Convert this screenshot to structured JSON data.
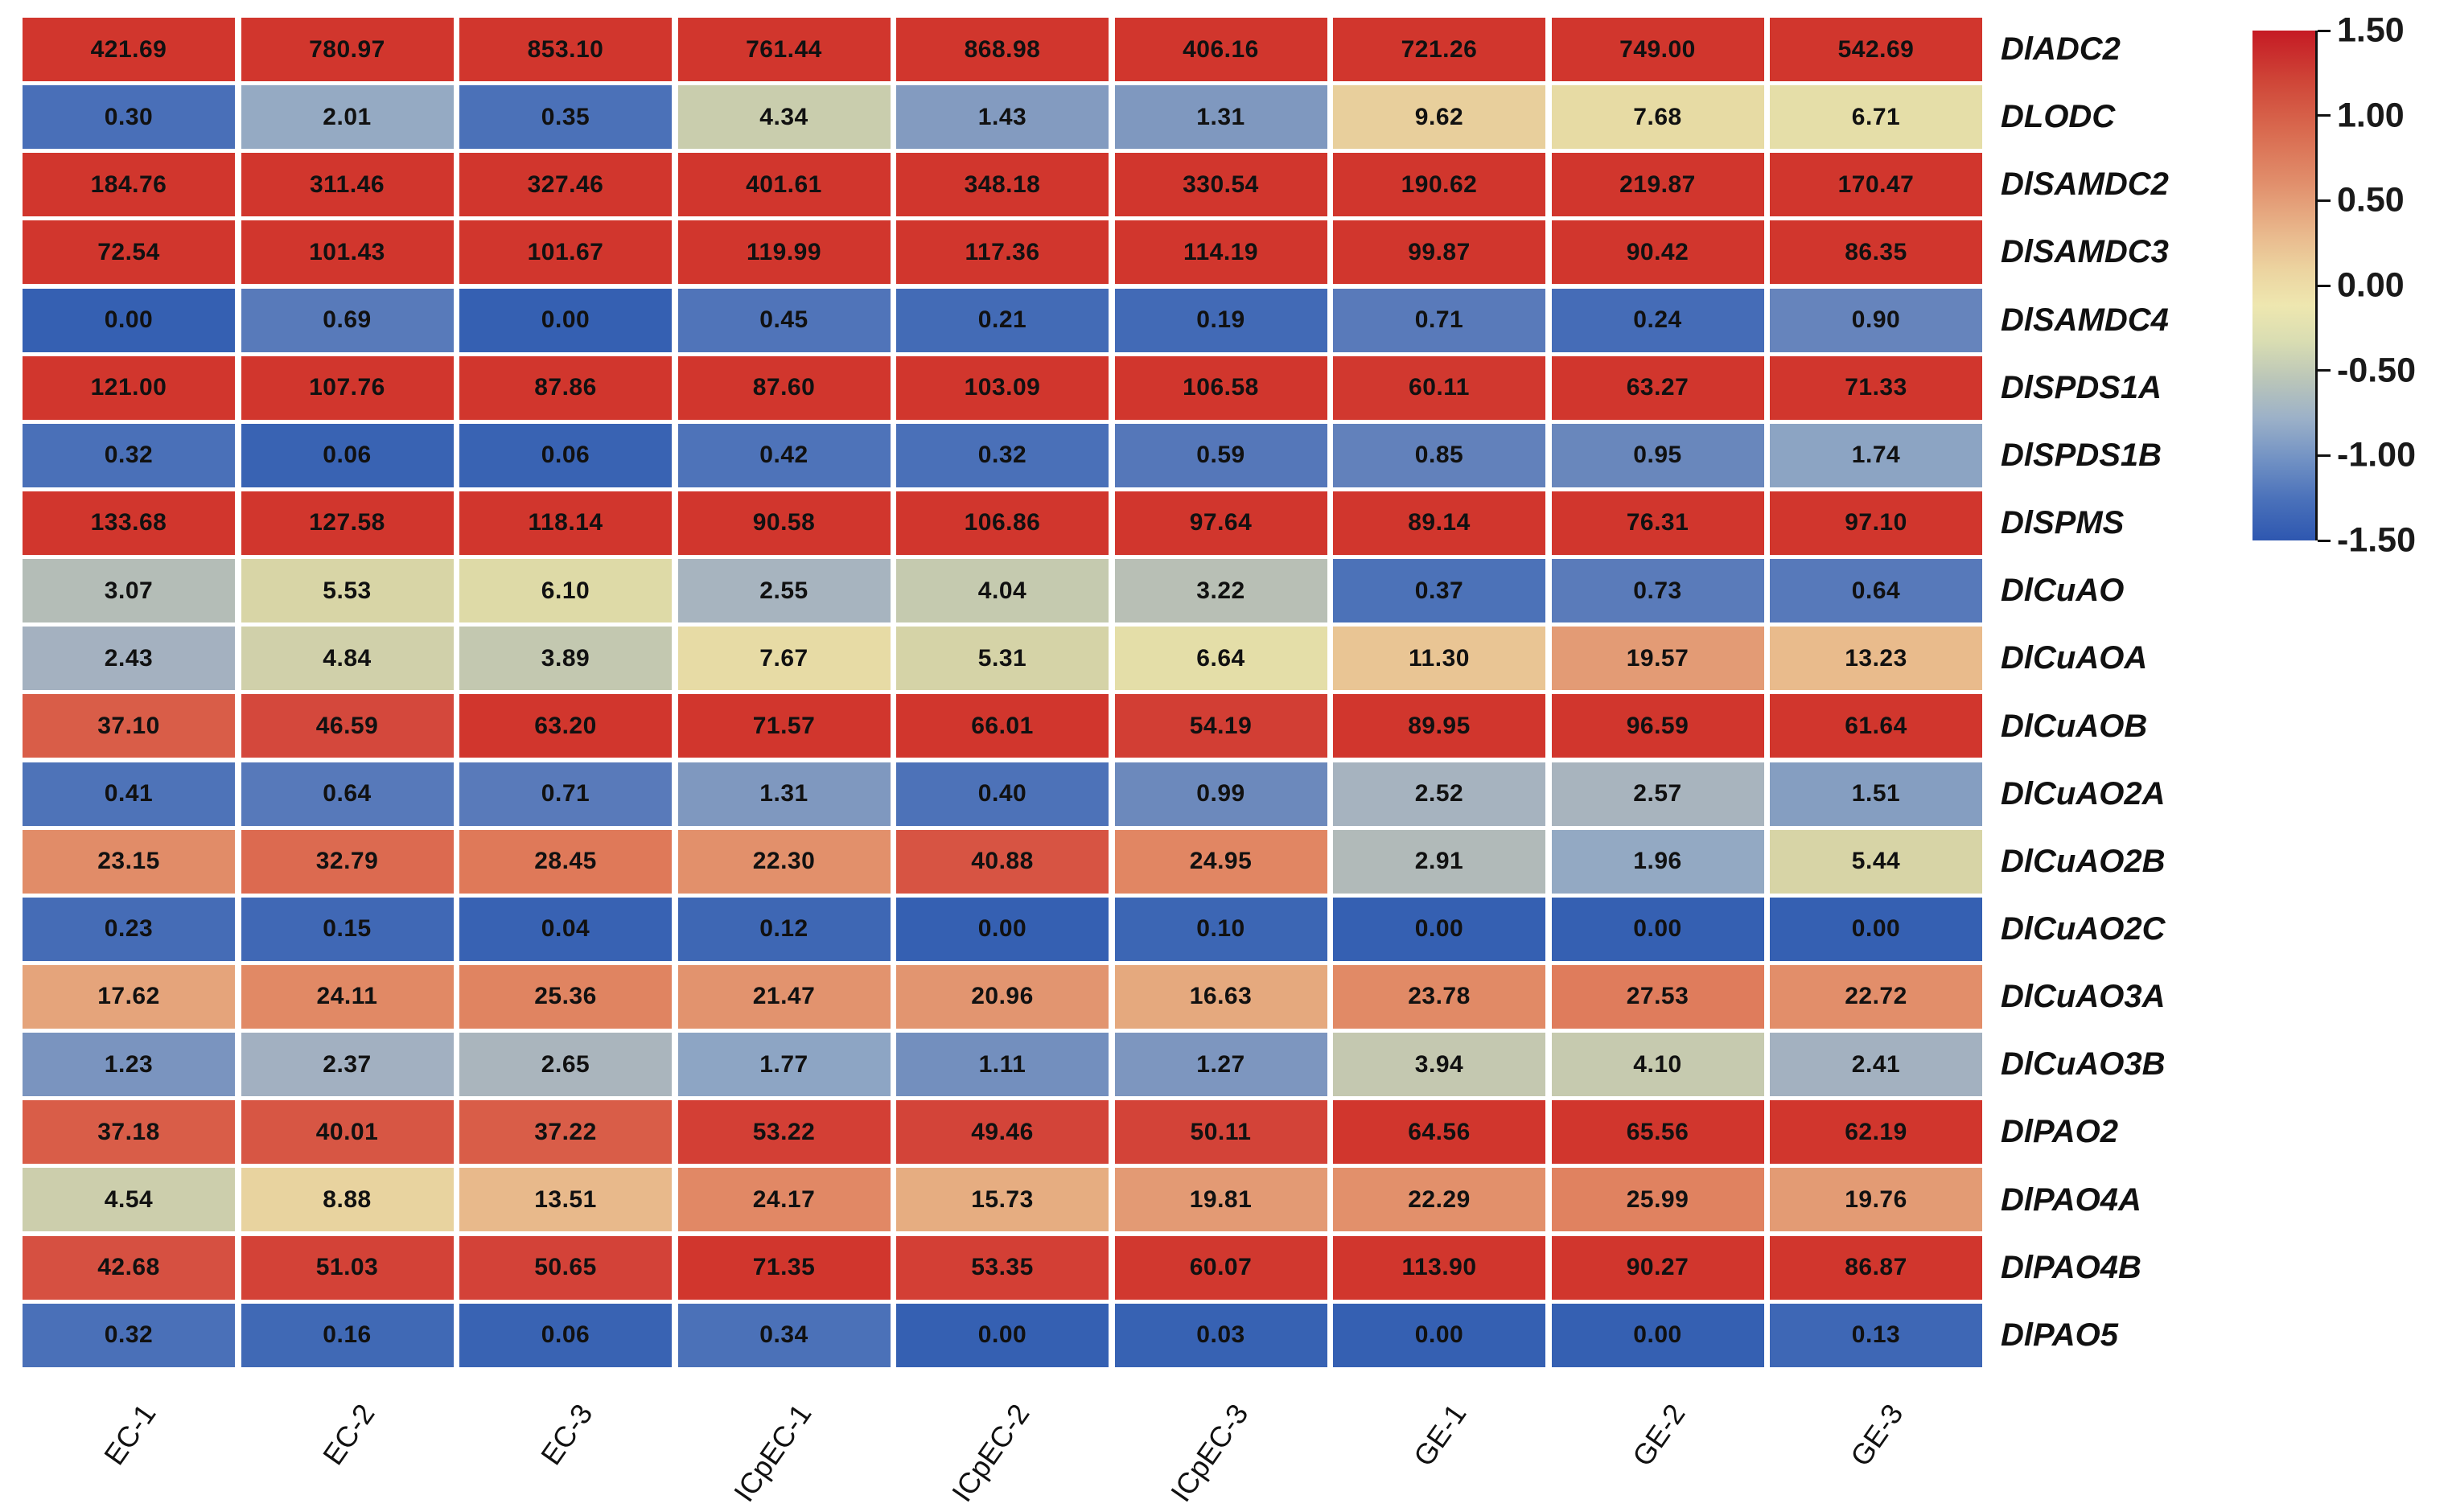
{
  "chart_data": {
    "type": "heatmap",
    "title": "",
    "categories": [
      "EC-1",
      "EC-2",
      "EC-3",
      "ICpEC-1",
      "ICpEC-2",
      "ICpEC-3",
      "GE-1",
      "GE-2",
      "GE-3"
    ],
    "rows": [
      {
        "gene": "DlADC2",
        "values": [
          421.69,
          780.97,
          853.1,
          761.44,
          868.98,
          406.16,
          721.26,
          749.0,
          542.69
        ]
      },
      {
        "gene": "DLODC",
        "values": [
          0.3,
          2.01,
          0.35,
          4.34,
          1.43,
          1.31,
          9.62,
          7.68,
          6.71
        ]
      },
      {
        "gene": "DlSAMDC2",
        "values": [
          184.76,
          311.46,
          327.46,
          401.61,
          348.18,
          330.54,
          190.62,
          219.87,
          170.47
        ]
      },
      {
        "gene": "DlSAMDC3",
        "values": [
          72.54,
          101.43,
          101.67,
          119.99,
          117.36,
          114.19,
          99.87,
          90.42,
          86.35
        ]
      },
      {
        "gene": "DlSAMDC4",
        "values": [
          0.0,
          0.69,
          0.0,
          0.45,
          0.21,
          0.19,
          0.71,
          0.24,
          0.9
        ]
      },
      {
        "gene": "DlSPDS1A",
        "values": [
          121.0,
          107.76,
          87.86,
          87.6,
          103.09,
          106.58,
          60.11,
          63.27,
          71.33
        ]
      },
      {
        "gene": "DlSPDS1B",
        "values": [
          0.32,
          0.06,
          0.06,
          0.42,
          0.32,
          0.59,
          0.85,
          0.95,
          1.74
        ]
      },
      {
        "gene": "DlSPMS",
        "values": [
          133.68,
          127.58,
          118.14,
          90.58,
          106.86,
          97.64,
          89.14,
          76.31,
          97.1
        ]
      },
      {
        "gene": "DlCuAO",
        "values": [
          3.07,
          5.53,
          6.1,
          2.55,
          4.04,
          3.22,
          0.37,
          0.73,
          0.64
        ]
      },
      {
        "gene": "DlCuAOA",
        "values": [
          2.43,
          4.84,
          3.89,
          7.67,
          5.31,
          6.64,
          11.3,
          19.57,
          13.23
        ]
      },
      {
        "gene": "DlCuAOB",
        "values": [
          37.1,
          46.59,
          63.2,
          71.57,
          66.01,
          54.19,
          89.95,
          96.59,
          61.64
        ]
      },
      {
        "gene": "DlCuAO2A",
        "values": [
          0.41,
          0.64,
          0.71,
          1.31,
          0.4,
          0.99,
          2.52,
          2.57,
          1.51
        ]
      },
      {
        "gene": "DlCuAO2B",
        "values": [
          23.15,
          32.79,
          28.45,
          22.3,
          40.88,
          24.95,
          2.91,
          1.96,
          5.44
        ]
      },
      {
        "gene": "DlCuAO2C",
        "values": [
          0.23,
          0.15,
          0.04,
          0.12,
          0.0,
          0.1,
          0.0,
          0.0,
          0.0
        ]
      },
      {
        "gene": "DlCuAO3A",
        "values": [
          17.62,
          24.11,
          25.36,
          21.47,
          20.96,
          16.63,
          23.78,
          27.53,
          22.72
        ]
      },
      {
        "gene": "DlCuAO3B",
        "values": [
          1.23,
          2.37,
          2.65,
          1.77,
          1.11,
          1.27,
          3.94,
          4.1,
          2.41
        ]
      },
      {
        "gene": "DlPAO2",
        "values": [
          37.18,
          40.01,
          37.22,
          53.22,
          49.46,
          50.11,
          64.56,
          65.56,
          62.19
        ]
      },
      {
        "gene": "DlPAO4A",
        "values": [
          4.54,
          8.88,
          13.51,
          24.17,
          15.73,
          19.81,
          22.29,
          25.99,
          19.76
        ]
      },
      {
        "gene": "DlPAO4B",
        "values": [
          42.68,
          51.03,
          50.65,
          71.35,
          53.35,
          60.07,
          113.9,
          90.27,
          86.87
        ]
      },
      {
        "gene": "DlPAO5",
        "values": [
          0.32,
          0.16,
          0.06,
          0.34,
          0.0,
          0.03,
          0.0,
          0.0,
          0.13
        ]
      }
    ],
    "colorbar": {
      "tick_labels": [
        "1.50",
        "1.00",
        "0.50",
        "0.00",
        "-0.50",
        "-1.00",
        "-1.50"
      ],
      "max": 1.5,
      "min": -1.5,
      "position": "top-right"
    },
    "layout_hints": {
      "grid": "white gaps between cells",
      "row_labels": "right side, italic",
      "column_labels": "bottom, rotated"
    },
    "colors": {
      "cell_text": "#111111",
      "label_text": "#111111",
      "background": "#ffffff",
      "cell_colormap": [
        {
          "z": -1.5,
          "color": "#3560b2"
        },
        {
          "z": -1.3,
          "color": "#4a70b8"
        },
        {
          "z": -1.1,
          "color": "#5a7bba"
        },
        {
          "z": -0.9,
          "color": "#7e97bf"
        },
        {
          "z": -0.75,
          "color": "#8ea6c4"
        },
        {
          "z": -0.6,
          "color": "#a5b2c0"
        },
        {
          "z": -0.45,
          "color": "#b9c0b4"
        },
        {
          "z": -0.3,
          "color": "#c8ccae"
        },
        {
          "z": -0.15,
          "color": "#d7d4a6"
        },
        {
          "z": 0.0,
          "color": "#e7e0a8"
        },
        {
          "z": 0.2,
          "color": "#e8d09d"
        },
        {
          "z": 0.4,
          "color": "#e9bd8e"
        },
        {
          "z": 0.55,
          "color": "#e6ac80"
        },
        {
          "z": 0.7,
          "color": "#e39a74"
        },
        {
          "z": 0.9,
          "color": "#e0805e"
        },
        {
          "z": 1.1,
          "color": "#da624b"
        },
        {
          "z": 1.3,
          "color": "#d4473c"
        },
        {
          "z": 1.5,
          "color": "#d1362d"
        }
      ],
      "legend_gradient": [
        {
          "pos": 0,
          "color": "#c51a24"
        },
        {
          "pos": 10,
          "color": "#cf4638"
        },
        {
          "pos": 20,
          "color": "#d96b50"
        },
        {
          "pos": 30,
          "color": "#e18f6c"
        },
        {
          "pos": 40,
          "color": "#e9b98d"
        },
        {
          "pos": 47,
          "color": "#ecd4a0"
        },
        {
          "pos": 54,
          "color": "#eee7b0"
        },
        {
          "pos": 61,
          "color": "#d9ddb2"
        },
        {
          "pos": 68,
          "color": "#bcc7b8"
        },
        {
          "pos": 76,
          "color": "#9cb1c8"
        },
        {
          "pos": 84,
          "color": "#7292c4"
        },
        {
          "pos": 92,
          "color": "#4a71ba"
        },
        {
          "pos": 100,
          "color": "#2e57b0"
        }
      ]
    }
  }
}
